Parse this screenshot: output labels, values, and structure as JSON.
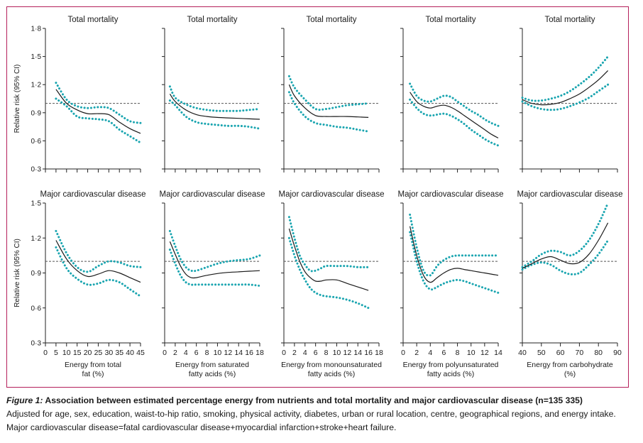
{
  "figure": {
    "ylabel": "Relative risk (95% CI)",
    "top_title": "Total mortality",
    "bottom_title": "Major cardiovascular disease"
  },
  "caption": {
    "label": "Figure 1:",
    "title": "Association between estimated percentage energy from nutrients and total mortality and major cardiovascular disease (n=135 335)",
    "line2": "Adjusted for age, sex, education, waist-to-hip ratio, smoking, physical activity, diabetes, urban or rural location, centre, geographical regions, and energy intake.",
    "line3": "Major cardiovascular disease=fatal cardiovascular disease+myocardial infarction+stroke+heart failure."
  },
  "colors": {
    "estimate": "#1a1a1a",
    "ci": "#1aa5b0",
    "reference": "#555555",
    "frame": "#b5205b"
  },
  "chart_data": [
    {
      "type": "line",
      "title": "Total mortality",
      "xlabel": "",
      "ylabel": "Relative risk (95% CI)",
      "xlim": [
        0,
        45
      ],
      "ylim": [
        0.3,
        1.8
      ],
      "yticks": [
        0.3,
        0.6,
        0.9,
        1.2,
        1.5,
        1.8
      ],
      "ytick_labels": [
        "0·3",
        "0·6",
        "0·9",
        "1·2",
        "1·5",
        "1·8"
      ],
      "xticks": [
        0,
        5,
        10,
        15,
        20,
        25,
        30,
        35,
        40,
        45
      ],
      "reference": 1.0,
      "x": [
        5,
        10,
        15,
        20,
        25,
        30,
        35,
        40,
        45
      ],
      "estimate": [
        1.15,
        1.0,
        0.93,
        0.89,
        0.89,
        0.88,
        0.8,
        0.73,
        0.68
      ],
      "lower": [
        1.05,
        0.97,
        0.86,
        0.84,
        0.83,
        0.81,
        0.72,
        0.65,
        0.58
      ],
      "upper": [
        1.22,
        1.04,
        0.97,
        0.95,
        0.96,
        0.95,
        0.88,
        0.81,
        0.79
      ]
    },
    {
      "type": "line",
      "title": "Total mortality",
      "xlabel": "",
      "ylabel": "",
      "xlim": [
        0,
        18
      ],
      "ylim": [
        0.3,
        1.8
      ],
      "yticks": [
        0.3,
        0.6,
        0.9,
        1.2,
        1.5,
        1.8
      ],
      "xticks": [
        0,
        2,
        4,
        6,
        8,
        10,
        12,
        14,
        16,
        18
      ],
      "reference": 1.0,
      "x": [
        1,
        2,
        4,
        6,
        8,
        10,
        12,
        14,
        16,
        18
      ],
      "estimate": [
        1.1,
        1.02,
        0.93,
        0.88,
        0.86,
        0.85,
        0.845,
        0.84,
        0.835,
        0.83
      ],
      "lower": [
        1.03,
        0.98,
        0.86,
        0.8,
        0.78,
        0.77,
        0.76,
        0.76,
        0.75,
        0.73
      ],
      "upper": [
        1.18,
        1.06,
        0.99,
        0.95,
        0.93,
        0.92,
        0.92,
        0.92,
        0.93,
        0.94
      ]
    },
    {
      "type": "line",
      "title": "Total mortality",
      "xlabel": "",
      "ylabel": "",
      "xlim": [
        0,
        18
      ],
      "ylim": [
        0.3,
        1.8
      ],
      "yticks": [
        0.3,
        0.6,
        0.9,
        1.2,
        1.5,
        1.8
      ],
      "xticks": [
        0,
        2,
        4,
        6,
        8,
        10,
        12,
        14,
        16,
        18
      ],
      "reference": 1.0,
      "x": [
        1,
        2,
        4,
        6,
        8,
        10,
        12,
        14,
        16
      ],
      "estimate": [
        1.2,
        1.08,
        0.95,
        0.87,
        0.86,
        0.86,
        0.86,
        0.855,
        0.85
      ],
      "lower": [
        1.12,
        1.0,
        0.86,
        0.79,
        0.77,
        0.75,
        0.74,
        0.72,
        0.7
      ],
      "upper": [
        1.29,
        1.17,
        1.04,
        0.94,
        0.94,
        0.96,
        0.98,
        0.99,
        1.0
      ]
    },
    {
      "type": "line",
      "title": "Total mortality",
      "xlabel": "",
      "ylabel": "",
      "xlim": [
        0,
        14
      ],
      "ylim": [
        0.3,
        1.8
      ],
      "yticks": [
        0.3,
        0.6,
        0.9,
        1.2,
        1.5,
        1.8
      ],
      "xticks": [
        0,
        2,
        4,
        6,
        8,
        10,
        12,
        14
      ],
      "reference": 1.0,
      "x": [
        1,
        2,
        3,
        4,
        5,
        6,
        7,
        8,
        9,
        10,
        11,
        12,
        13,
        14
      ],
      "estimate": [
        1.12,
        1.02,
        0.97,
        0.95,
        0.97,
        0.98,
        0.96,
        0.92,
        0.87,
        0.82,
        0.77,
        0.72,
        0.67,
        0.63
      ],
      "lower": [
        1.04,
        0.95,
        0.89,
        0.87,
        0.88,
        0.89,
        0.87,
        0.83,
        0.78,
        0.72,
        0.67,
        0.62,
        0.58,
        0.55
      ],
      "upper": [
        1.21,
        1.08,
        1.03,
        1.02,
        1.05,
        1.08,
        1.07,
        1.02,
        0.97,
        0.92,
        0.88,
        0.83,
        0.79,
        0.76
      ]
    },
    {
      "type": "line",
      "title": "Total mortality",
      "xlabel": "",
      "ylabel": "",
      "xlim": [
        40,
        90
      ],
      "ylim": [
        0.3,
        1.8
      ],
      "yticks": [
        0.3,
        0.6,
        0.9,
        1.2,
        1.5,
        1.8
      ],
      "xticks": [
        40,
        50,
        60,
        70,
        80,
        90
      ],
      "reference": 1.0,
      "x": [
        40,
        45,
        50,
        55,
        60,
        65,
        70,
        75,
        80,
        85
      ],
      "estimate": [
        1.04,
        1.0,
        0.985,
        0.99,
        1.01,
        1.05,
        1.1,
        1.17,
        1.25,
        1.35
      ],
      "lower": [
        1.02,
        0.97,
        0.94,
        0.93,
        0.94,
        0.97,
        1.01,
        1.06,
        1.13,
        1.2
      ],
      "upper": [
        1.06,
        1.03,
        1.03,
        1.05,
        1.08,
        1.13,
        1.2,
        1.28,
        1.38,
        1.5
      ]
    },
    {
      "type": "line",
      "title": "Major cardiovascular disease",
      "xlabel": "Energy from total fat (%)",
      "ylabel": "Relative risk (95% CI)",
      "xlim": [
        0,
        45
      ],
      "ylim": [
        0.3,
        1.5
      ],
      "yticks": [
        0.3,
        0.6,
        0.9,
        1.2,
        1.5
      ],
      "ytick_labels": [
        "0·3",
        "0·6",
        "0·9",
        "1·2",
        "1·5"
      ],
      "xticks": [
        0,
        5,
        10,
        15,
        20,
        25,
        30,
        35,
        40,
        45
      ],
      "xtick_labels": [
        "0",
        "5",
        "10",
        "15",
        "20",
        "25",
        "30",
        "35",
        "40",
        "45"
      ],
      "reference": 1.0,
      "x": [
        5,
        10,
        15,
        20,
        25,
        30,
        35,
        40,
        45
      ],
      "estimate": [
        1.18,
        1.02,
        0.92,
        0.87,
        0.89,
        0.92,
        0.9,
        0.86,
        0.82
      ],
      "lower": [
        1.12,
        0.94,
        0.85,
        0.8,
        0.81,
        0.84,
        0.82,
        0.76,
        0.7
      ],
      "upper": [
        1.26,
        1.07,
        0.95,
        0.91,
        0.96,
        1.0,
        0.99,
        0.96,
        0.95
      ]
    },
    {
      "type": "line",
      "title": "Major cardiovascular disease",
      "xlabel": "Energy from saturated fatty acids (%)",
      "ylabel": "",
      "xlim": [
        0,
        18
      ],
      "ylim": [
        0.3,
        1.5
      ],
      "yticks": [
        0.3,
        0.6,
        0.9,
        1.2,
        1.5
      ],
      "xticks": [
        0,
        2,
        4,
        6,
        8,
        10,
        12,
        14,
        16,
        18
      ],
      "xtick_labels": [
        "0",
        "2",
        "4",
        "6",
        "8",
        "10",
        "12",
        "14",
        "16",
        "18"
      ],
      "reference": 1.0,
      "x": [
        1,
        2,
        3,
        4,
        5,
        6,
        8,
        10,
        12,
        14,
        16,
        18
      ],
      "estimate": [
        1.17,
        1.06,
        0.96,
        0.89,
        0.86,
        0.86,
        0.88,
        0.895,
        0.905,
        0.91,
        0.915,
        0.92
      ],
      "lower": [
        1.1,
        0.98,
        0.88,
        0.82,
        0.8,
        0.8,
        0.8,
        0.8,
        0.8,
        0.8,
        0.8,
        0.79
      ],
      "upper": [
        1.26,
        1.13,
        1.02,
        0.95,
        0.92,
        0.92,
        0.95,
        0.98,
        1.0,
        1.01,
        1.02,
        1.05
      ]
    },
    {
      "type": "line",
      "title": "Major cardiovascular disease",
      "xlabel": "Energy from monounsaturated fatty acids (%)",
      "ylabel": "",
      "xlim": [
        0,
        18
      ],
      "ylim": [
        0.3,
        1.5
      ],
      "yticks": [
        0.3,
        0.6,
        0.9,
        1.2,
        1.5
      ],
      "xticks": [
        0,
        2,
        4,
        6,
        8,
        10,
        12,
        14,
        16,
        18
      ],
      "xtick_labels": [
        "0",
        "2",
        "4",
        "6",
        "8",
        "10",
        "12",
        "14",
        "16",
        "18"
      ],
      "reference": 1.0,
      "x": [
        1,
        2,
        3,
        4,
        5,
        6,
        7,
        8,
        10,
        12,
        14,
        16
      ],
      "estimate": [
        1.28,
        1.13,
        1.0,
        0.91,
        0.86,
        0.83,
        0.83,
        0.84,
        0.84,
        0.81,
        0.78,
        0.75
      ],
      "lower": [
        1.2,
        1.05,
        0.93,
        0.84,
        0.77,
        0.73,
        0.71,
        0.7,
        0.69,
        0.67,
        0.64,
        0.6
      ],
      "upper": [
        1.38,
        1.2,
        1.05,
        0.97,
        0.92,
        0.92,
        0.94,
        0.96,
        0.96,
        0.96,
        0.95,
        0.95
      ]
    },
    {
      "type": "line",
      "title": "Major cardiovascular disease",
      "xlabel": "Energy from polyunsaturated fatty acids (%)",
      "ylabel": "",
      "xlim": [
        0,
        14
      ],
      "ylim": [
        0.3,
        1.5
      ],
      "yticks": [
        0.3,
        0.6,
        0.9,
        1.2,
        1.5
      ],
      "xticks": [
        0,
        2,
        4,
        6,
        8,
        10,
        12,
        14
      ],
      "xtick_labels": [
        "0",
        "2",
        "4",
        "6",
        "8",
        "10",
        "12",
        "14"
      ],
      "reference": 1.0,
      "x": [
        1,
        2,
        3,
        4,
        5,
        6,
        7,
        8,
        9,
        10,
        11,
        12,
        13,
        14
      ],
      "estimate": [
        1.3,
        1.05,
        0.88,
        0.82,
        0.86,
        0.9,
        0.93,
        0.94,
        0.93,
        0.92,
        0.91,
        0.9,
        0.89,
        0.88
      ],
      "lower": [
        1.25,
        1.0,
        0.83,
        0.76,
        0.78,
        0.81,
        0.83,
        0.84,
        0.83,
        0.81,
        0.79,
        0.77,
        0.75,
        0.73
      ],
      "upper": [
        1.4,
        1.12,
        0.92,
        0.88,
        0.96,
        1.01,
        1.04,
        1.05,
        1.05,
        1.05,
        1.05,
        1.05,
        1.05,
        1.05
      ]
    },
    {
      "type": "line",
      "title": "Major cardiovascular disease",
      "xlabel": "Energy from carbohydrate (%)",
      "ylabel": "",
      "xlim": [
        40,
        90
      ],
      "ylim": [
        0.3,
        1.5
      ],
      "yticks": [
        0.3,
        0.6,
        0.9,
        1.2,
        1.5
      ],
      "xticks": [
        40,
        50,
        60,
        70,
        80,
        90
      ],
      "xtick_labels": [
        "40",
        "50",
        "60",
        "70",
        "80",
        "90"
      ],
      "reference": 1.0,
      "x": [
        40,
        45,
        50,
        55,
        60,
        65,
        70,
        75,
        80,
        85
      ],
      "estimate": [
        0.94,
        0.98,
        1.02,
        1.04,
        1.01,
        0.98,
        0.99,
        1.06,
        1.18,
        1.33
      ],
      "lower": [
        0.93,
        0.97,
        0.99,
        0.97,
        0.92,
        0.89,
        0.9,
        0.97,
        1.06,
        1.18
      ],
      "upper": [
        0.95,
        1.0,
        1.06,
        1.09,
        1.08,
        1.05,
        1.09,
        1.18,
        1.32,
        1.5
      ]
    }
  ]
}
